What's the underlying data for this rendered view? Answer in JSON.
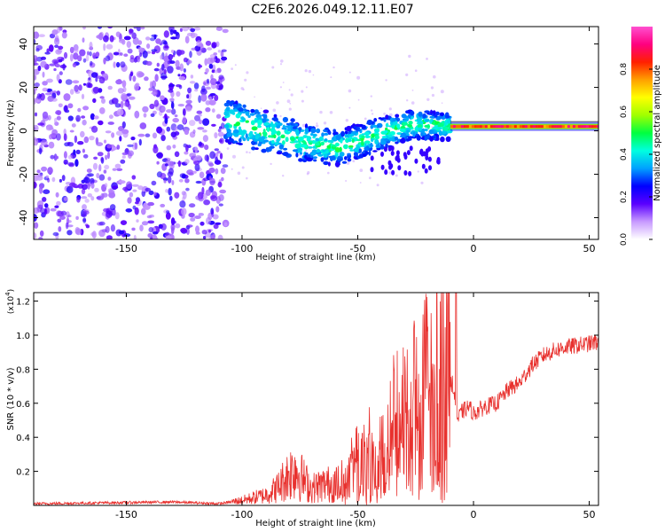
{
  "chart_data": [
    {
      "type": "heatmap",
      "title": "C2E6.2026.049.12.11.E07",
      "xlabel": "Height of straight line (km)",
      "ylabel": "Frequency (Hz)",
      "xlim": [
        -190,
        54
      ],
      "ylim": [
        -50,
        48
      ],
      "xticks": [
        -150,
        -100,
        -50,
        0,
        50
      ],
      "yticks": [
        -40,
        -20,
        0,
        20,
        40
      ],
      "colorbar": {
        "label": "Normalized spectral amplitude",
        "range": [
          0,
          1
        ],
        "ticks": [
          "0.0",
          "0.2",
          "0.4",
          "0.6",
          "0.8"
        ],
        "colors": [
          "#ffffff",
          "#c89bff",
          "#5a00ff",
          "#0000ff",
          "#00a0ff",
          "#00ffe0",
          "#00ff40",
          "#a0ff00",
          "#ffff00",
          "#ffa000",
          "#ff2000",
          "#ff0080",
          "#ff50d0"
        ]
      },
      "features": [
        {
          "name": "diffuse noise",
          "x_range": [
            -190,
            -107
          ],
          "y_range": [
            -50,
            48
          ],
          "level": 0.2
        },
        {
          "name": "emerging band",
          "x_range": [
            -107,
            -10
          ],
          "center_y": [
            5,
            0,
            -5,
            -8,
            -2,
            3,
            2
          ],
          "level": 0.4
        },
        {
          "name": "stable tone",
          "x_range": [
            -10,
            54
          ],
          "center_y": 2,
          "level": 0.9
        }
      ]
    },
    {
      "type": "line",
      "xlabel": "Height of straight line (km)",
      "ylabel": "SNR (10 * v/v)",
      "scale_label": "(x10",
      "scale_exp": "4",
      "xlim": [
        -190,
        54
      ],
      "ylim": [
        0,
        1.25
      ],
      "xticks": [
        -150,
        -100,
        -50,
        0,
        50
      ],
      "yticks": [
        "0.2",
        "0.4",
        "0.6",
        "0.8",
        "1.0",
        "1.2"
      ],
      "series": [
        {
          "name": "SNR",
          "color": "#e8312e",
          "x": [
            -190,
            -160,
            -130,
            -110,
            -100,
            -90,
            -85,
            -80,
            -77,
            -74,
            -70,
            -65,
            -60,
            -56,
            -52,
            -48,
            -44,
            -40,
            -36,
            -32,
            -28,
            -24,
            -20,
            -17,
            -14,
            -11,
            -9,
            -7,
            -5,
            -2,
            0,
            5,
            10,
            15,
            20,
            25,
            30,
            35,
            40,
            45,
            50,
            54
          ],
          "values": [
            0.01,
            0.015,
            0.02,
            0.01,
            0.03,
            0.06,
            0.1,
            0.18,
            0.22,
            0.16,
            0.1,
            0.12,
            0.13,
            0.15,
            0.2,
            0.3,
            0.25,
            0.35,
            0.45,
            0.5,
            0.55,
            0.6,
            0.7,
            0.65,
            0.75,
            0.7,
            0.72,
            0.5,
            0.55,
            0.58,
            0.54,
            0.58,
            0.6,
            0.68,
            0.72,
            0.82,
            0.88,
            0.91,
            0.93,
            0.94,
            0.95,
            0.96
          ]
        }
      ]
    }
  ]
}
